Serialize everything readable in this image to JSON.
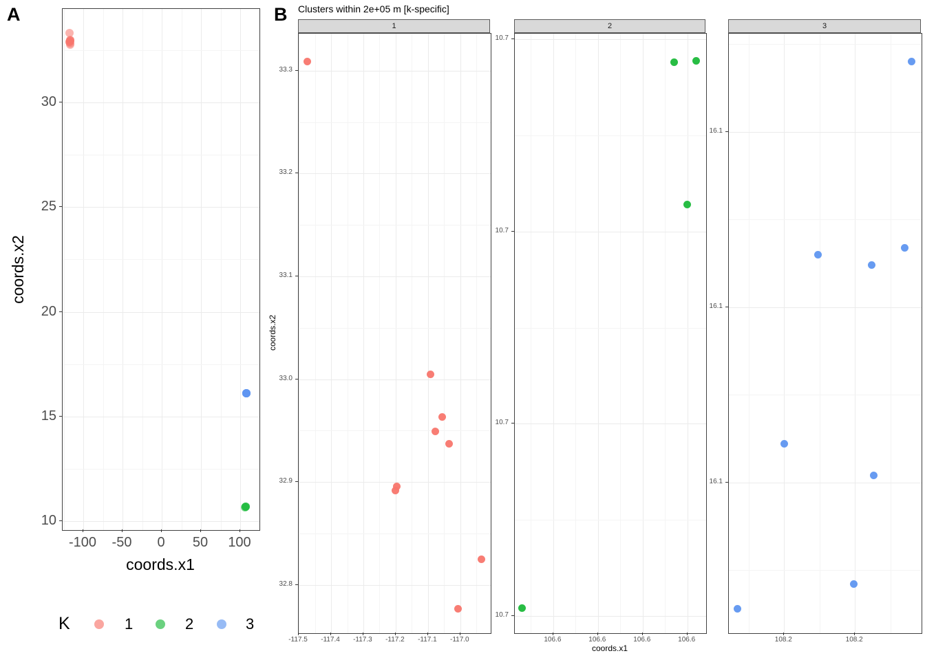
{
  "panel_a": {
    "label": "A",
    "x_title": "coords.x1",
    "y_title": "coords.x2",
    "xlim": [
      -126.3,
      124.6
    ],
    "ylim": [
      9.57,
      34.47
    ],
    "x_ticks": [
      {
        "v": -100,
        "label": "-100"
      },
      {
        "v": -50,
        "label": "-50"
      },
      {
        "v": 0,
        "label": "0"
      },
      {
        "v": 50,
        "label": "50"
      },
      {
        "v": 100,
        "label": "100"
      }
    ],
    "y_ticks": [
      {
        "v": 30,
        "label": "30"
      },
      {
        "v": 25,
        "label": "25"
      },
      {
        "v": 20,
        "label": "20"
      },
      {
        "v": 15,
        "label": "15"
      },
      {
        "v": 10,
        "label": "10"
      }
    ]
  },
  "panel_b": {
    "label": "B",
    "title": "Clusters within 2e+05 m [k-specific]",
    "x_title": "coords.x1",
    "y_title": "coords.x2",
    "facets": [
      {
        "strip": "1",
        "k": "1",
        "xlim": [
          -117.5,
          -116.906
        ],
        "ylim": [
          32.753,
          33.336
        ],
        "x_ticks": [
          {
            "v": -117.5,
            "label": "-117.5"
          },
          {
            "v": -117.4,
            "label": "-117.4"
          },
          {
            "v": -117.3,
            "label": "-117.3"
          },
          {
            "v": -117.2,
            "label": "-117.2"
          },
          {
            "v": -117.1,
            "label": "-117.1"
          },
          {
            "v": -117.0,
            "label": "-117.0"
          }
        ],
        "y_ticks": [
          {
            "v": 33.3,
            "label": "33.3"
          },
          {
            "v": 33.2,
            "label": "33.2"
          },
          {
            "v": 33.1,
            "label": "33.1"
          },
          {
            "v": 33.0,
            "label": "33.0"
          },
          {
            "v": 32.9,
            "label": "32.9"
          },
          {
            "v": 32.8,
            "label": "32.8"
          }
        ]
      },
      {
        "strip": "2",
        "k": "2",
        "xlim": [
          106.5614,
          106.6042
        ],
        "ylim": [
          10.6691,
          10.7003
        ],
        "x_ticks": [
          {
            "v": 106.57,
            "label": "106.6"
          },
          {
            "v": 106.58,
            "label": "106.6"
          },
          {
            "v": 106.59,
            "label": "106.6"
          },
          {
            "v": 106.6,
            "label": "106.6"
          }
        ],
        "y_ticks": [
          {
            "v": 10.7,
            "label": "10.7"
          },
          {
            "v": 10.69,
            "label": "10.7"
          },
          {
            "v": 10.68,
            "label": "10.7"
          },
          {
            "v": 10.67,
            "label": "10.7"
          }
        ]
      },
      {
        "strip": "3",
        "k": "3",
        "xlim": [
          108.1911,
          108.2047
        ],
        "ylim": [
          16.0957,
          16.1128
        ],
        "x_ticks": [
          {
            "v": 108.195,
            "label": "108.2"
          },
          {
            "v": 108.2,
            "label": "108.2"
          }
        ],
        "y_ticks": [
          {
            "v": 16.11,
            "label": "16.1"
          },
          {
            "v": 16.105,
            "label": "16.1"
          },
          {
            "v": 16.1,
            "label": "16.1"
          }
        ]
      }
    ]
  },
  "legend": {
    "title": "K",
    "items": [
      {
        "label": "1",
        "color": "#f8766d"
      },
      {
        "label": "2",
        "color": "#1cb93a"
      },
      {
        "label": "3",
        "color": "#5f96f0"
      }
    ]
  },
  "chart_data": {
    "type": "scatter",
    "title": "Clusters within 2e+05 m [k-specific]",
    "xlabel": "coords.x1",
    "ylabel": "coords.x2",
    "legend_title": "K",
    "legend_position": "bottom-left (panel A only)",
    "panels": [
      {
        "id": "A",
        "description": "overview scatter of all points colored by cluster K",
        "xlim": [
          -126.3,
          124.6
        ],
        "ylim": [
          9.57,
          34.47
        ],
        "x_breaks": [
          -100,
          -50,
          0,
          50,
          100
        ],
        "y_breaks": [
          10,
          15,
          20,
          25,
          30
        ]
      },
      {
        "id": "B",
        "description": "same points faceted by K with free x/y scales",
        "facet_strips": [
          "1",
          "2",
          "3"
        ]
      }
    ],
    "series": [
      {
        "k": "1",
        "name": "1",
        "color": "#f8766d",
        "points": [
          [
            -117.474,
            33.309
          ],
          [
            -117.092,
            33.005
          ],
          [
            -117.056,
            32.963
          ],
          [
            -117.077,
            32.949
          ],
          [
            -117.035,
            32.937
          ],
          [
            -117.196,
            32.896
          ],
          [
            -117.2,
            32.892
          ],
          [
            -116.935,
            32.825
          ],
          [
            -117.007,
            32.777
          ]
        ]
      },
      {
        "k": "2",
        "name": "2",
        "color": "#1cb93a",
        "points": [
          [
            106.597,
            10.6988
          ],
          [
            106.602,
            10.6989
          ],
          [
            106.6,
            10.6914
          ],
          [
            106.563,
            10.6704
          ]
        ]
      },
      {
        "k": "3",
        "name": "3",
        "color": "#5f96f0",
        "points": [
          [
            108.204,
            16.112
          ],
          [
            108.2035,
            16.1067
          ],
          [
            108.2012,
            16.1062
          ],
          [
            108.1974,
            16.1065
          ],
          [
            108.195,
            16.1011
          ],
          [
            108.2013,
            16.1002
          ],
          [
            108.1999,
            16.0971
          ],
          [
            108.1917,
            16.0964
          ]
        ]
      }
    ]
  }
}
